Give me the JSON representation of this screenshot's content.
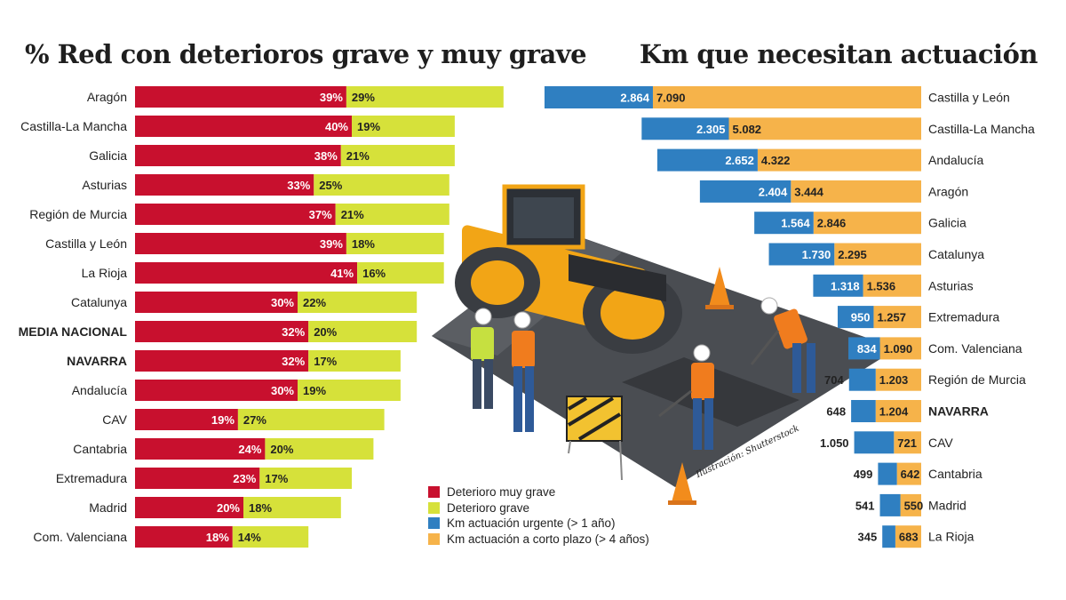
{
  "colors": {
    "muy_grave": "#c8102e",
    "grave": "#d6e13a",
    "urgente": "#2f7fc1",
    "corto_plazo": "#f6b34a"
  },
  "illustration": {
    "credit": "Ilustración: Shutterstock"
  },
  "legend": [
    {
      "label": "Deterioro muy grave",
      "color": "#c8102e"
    },
    {
      "label": "Deterioro grave",
      "color": "#d6e13a"
    },
    {
      "label": "Km actuación urgente (> 1 año)",
      "color": "#2f7fc1"
    },
    {
      "label": "Km actuación a corto plazo (> 4 años)",
      "color": "#f6b34a"
    }
  ],
  "chart_data": [
    {
      "type": "bar",
      "orientation": "horizontal",
      "stacked": true,
      "title": "% Red con deterioros grave y muy grave",
      "categories": [
        "Aragón",
        "Castilla-La Mancha",
        "Galicia",
        "Asturias",
        "Región de Murcia",
        "Castilla y León",
        "La Rioja",
        "Catalunya",
        "MEDIA NACIONAL",
        "NAVARRA",
        "Andalucía",
        "CAV",
        "Cantabria",
        "Extremadura",
        "Madrid",
        "Com. Valenciana"
      ],
      "bold_categories": [
        "MEDIA NACIONAL",
        "NAVARRA"
      ],
      "series": [
        {
          "name": "Deterioro muy grave",
          "values": [
            39,
            40,
            38,
            33,
            37,
            39,
            41,
            30,
            32,
            32,
            30,
            19,
            24,
            23,
            20,
            18
          ]
        },
        {
          "name": "Deterioro grave",
          "values": [
            29,
            19,
            21,
            25,
            21,
            18,
            16,
            22,
            20,
            17,
            19,
            27,
            20,
            17,
            18,
            14
          ]
        }
      ]
    },
    {
      "type": "bar",
      "orientation": "horizontal",
      "stacked": true,
      "title": "Km que necesitan actuación",
      "categories": [
        "Castilla y León",
        "Castilla-La Mancha",
        "Andalucía",
        "Aragón",
        "Galicia",
        "Catalunya",
        "Asturias",
        "Extremadura",
        "Com. Valenciana",
        "Región de Murcia",
        "NAVARRA",
        "CAV",
        "Cantabria",
        "Madrid",
        "La Rioja"
      ],
      "bold_categories": [
        "NAVARRA"
      ],
      "series": [
        {
          "name": "Km actuación urgente (> 1 año)",
          "values": [
            2864,
            2305,
            2652,
            2404,
            1564,
            1730,
            1318,
            950,
            834,
            704,
            648,
            1050,
            499,
            541,
            345
          ]
        },
        {
          "name": "Km actuación a corto plazo (> 4 años)",
          "values": [
            7090,
            5082,
            4322,
            3444,
            2846,
            2295,
            1536,
            1257,
            1090,
            1203,
            1204,
            721,
            642,
            550,
            683
          ]
        }
      ]
    }
  ]
}
